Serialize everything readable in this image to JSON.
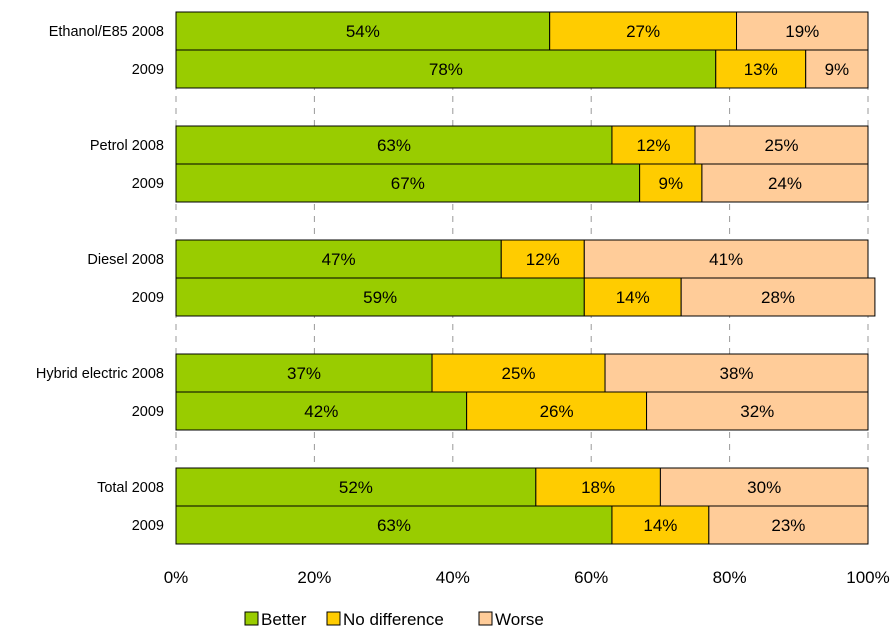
{
  "chart_data": {
    "type": "bar",
    "orientation": "horizontal",
    "stacked": true,
    "percent_stacked": true,
    "categories": [
      "Ethanol/E85 2008",
      "2009",
      "Petrol 2008",
      "2009",
      "Diesel 2008",
      "2009",
      "Hybrid electric 2008",
      "2009",
      "Total 2008",
      "2009"
    ],
    "series": [
      {
        "name": "Better",
        "color": "#99cc00",
        "values": [
          54,
          78,
          63,
          67,
          47,
          59,
          37,
          42,
          52,
          63
        ],
        "labels": [
          "54%",
          "78%",
          "63%",
          "67%",
          "47%",
          "59%",
          "37%",
          "42%",
          "52%",
          "63%"
        ]
      },
      {
        "name": "No difference",
        "color": "#ffcc00",
        "values": [
          27,
          13,
          12,
          9,
          12,
          14,
          25,
          26,
          18,
          14
        ],
        "labels": [
          "27%",
          "13%",
          "12%",
          "9%",
          "12%",
          "14%",
          "25%",
          "26%",
          "18%",
          "14%"
        ]
      },
      {
        "name": "Worse",
        "color": "#ffcc99",
        "values": [
          19,
          9,
          25,
          24,
          41,
          28,
          38,
          32,
          30,
          23
        ],
        "labels": [
          "19%",
          "9%",
          "25%",
          "24%",
          "41%",
          "28%",
          "38%",
          "32%",
          "30%",
          "23%"
        ]
      }
    ],
    "xlim": [
      0,
      100
    ],
    "x_ticks": [
      "0%",
      "20%",
      "40%",
      "60%",
      "80%",
      "100%"
    ],
    "grid": "vertical dashed",
    "legend_position": "bottom"
  }
}
